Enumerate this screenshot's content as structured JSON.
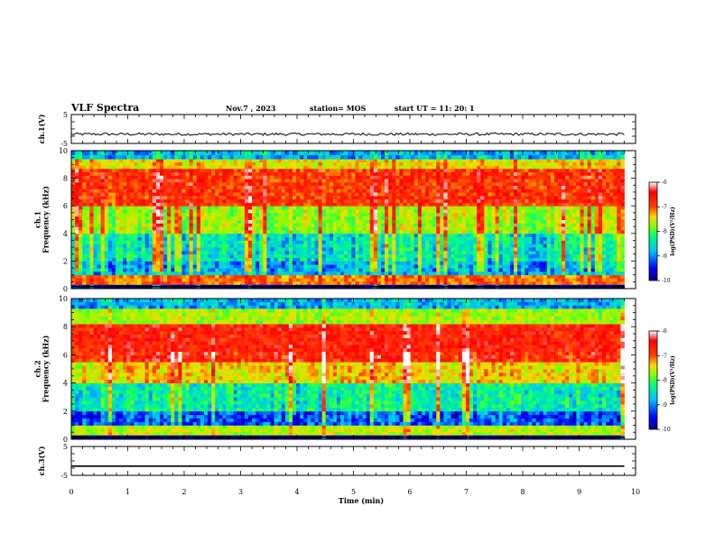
{
  "header": {
    "title": "VLF Spectra",
    "date": "Nov.7 , 2023",
    "station": "station= MOS",
    "start": "start  UT =   11: 20: 1"
  },
  "colors": {
    "colormap": [
      "#000080",
      "#0000ff",
      "#00bfff",
      "#00ff7f",
      "#7fff00",
      "#ffd700",
      "#ff4000",
      "#ff0000",
      "#ffffff"
    ],
    "trace": "#000000",
    "frame": "#000000",
    "background": "#ffffff"
  },
  "chart_data": [
    {
      "type": "line",
      "name": "ch1-voltage",
      "ylabel": "ch.1(V)",
      "ylim": [
        -5,
        5
      ],
      "yticks": [
        "5",
        "-5"
      ],
      "xlim": [
        0,
        10
      ],
      "x": [
        0,
        10
      ],
      "values": [
        -1.8,
        -1.8
      ],
      "description_note": "near-constant trace slightly below zero with small noise"
    },
    {
      "type": "heatmap",
      "name": "ch1-spectrogram",
      "ylabel": "ch.1\nFrequency (kHz)",
      "ylabel_lines": [
        "ch.1",
        "Frequency (kHz)"
      ],
      "ylim": [
        0,
        10
      ],
      "yticks": [
        "0",
        "2",
        "4",
        "6",
        "8",
        "10"
      ],
      "xlim": [
        0,
        10
      ],
      "data_end_min": 9.8,
      "colorbar": {
        "label": "log(PSD)(V²/Hz)",
        "ticks": [
          "-6",
          "-7",
          "-8",
          "-9",
          "-10"
        ],
        "range": [
          -10,
          -6
        ]
      },
      "bands": [
        {
          "from_khz": 0,
          "to_khz": 0.3,
          "level": -9.8
        },
        {
          "from_khz": 0.3,
          "to_khz": 1.0,
          "level": -7.2
        },
        {
          "from_khz": 1.0,
          "to_khz": 2.0,
          "level": -9.0
        },
        {
          "from_khz": 2.0,
          "to_khz": 4.0,
          "level": -8.7
        },
        {
          "from_khz": 4.0,
          "to_khz": 6.0,
          "level": -7.9
        },
        {
          "from_khz": 6.0,
          "to_khz": 8.7,
          "level": -6.9
        },
        {
          "from_khz": 8.7,
          "to_khz": 9.4,
          "level": -7.6
        },
        {
          "from_khz": 9.4,
          "to_khz": 10.0,
          "level": -9.0
        }
      ]
    },
    {
      "type": "heatmap",
      "name": "ch2-spectrogram",
      "ylabel": "ch.2\nFrequency (kHz)",
      "ylabel_lines": [
        "ch.2",
        "Frequency (kHz)"
      ],
      "ylim": [
        0,
        10
      ],
      "yticks": [
        "0",
        "2",
        "4",
        "6",
        "8",
        "10"
      ],
      "xlim": [
        0,
        10
      ],
      "data_end_min": 9.8,
      "colorbar": {
        "label": "log(PSD)(V²/Hz)",
        "ticks": [
          "-6",
          "-7",
          "-8",
          "-9",
          "-10"
        ],
        "range": [
          -10,
          -6
        ]
      },
      "bands": [
        {
          "from_khz": 0,
          "to_khz": 0.3,
          "level": -9.8
        },
        {
          "from_khz": 0.3,
          "to_khz": 1.0,
          "level": -7.8
        },
        {
          "from_khz": 1.0,
          "to_khz": 2.0,
          "level": -9.3
        },
        {
          "from_khz": 2.0,
          "to_khz": 4.0,
          "level": -8.6
        },
        {
          "from_khz": 4.0,
          "to_khz": 5.5,
          "level": -7.5
        },
        {
          "from_khz": 5.5,
          "to_khz": 8.2,
          "level": -6.7
        },
        {
          "from_khz": 8.2,
          "to_khz": 9.3,
          "level": -7.9
        },
        {
          "from_khz": 9.3,
          "to_khz": 10.0,
          "level": -9.0
        }
      ]
    },
    {
      "type": "line",
      "name": "ch3-voltage",
      "ylabel": "ch.3(V)",
      "ylim": [
        -5,
        5
      ],
      "yticks": [
        "5",
        "-5"
      ],
      "xlim": [
        0,
        10
      ],
      "x": [
        0,
        10
      ],
      "values": [
        -1.8,
        -1.8
      ]
    }
  ],
  "xaxis": {
    "label": "Time  (min)",
    "ticks": [
      "0",
      "1",
      "2",
      "3",
      "4",
      "5",
      "6",
      "7",
      "8",
      "9",
      "10"
    ],
    "xlim": [
      0,
      10
    ]
  }
}
